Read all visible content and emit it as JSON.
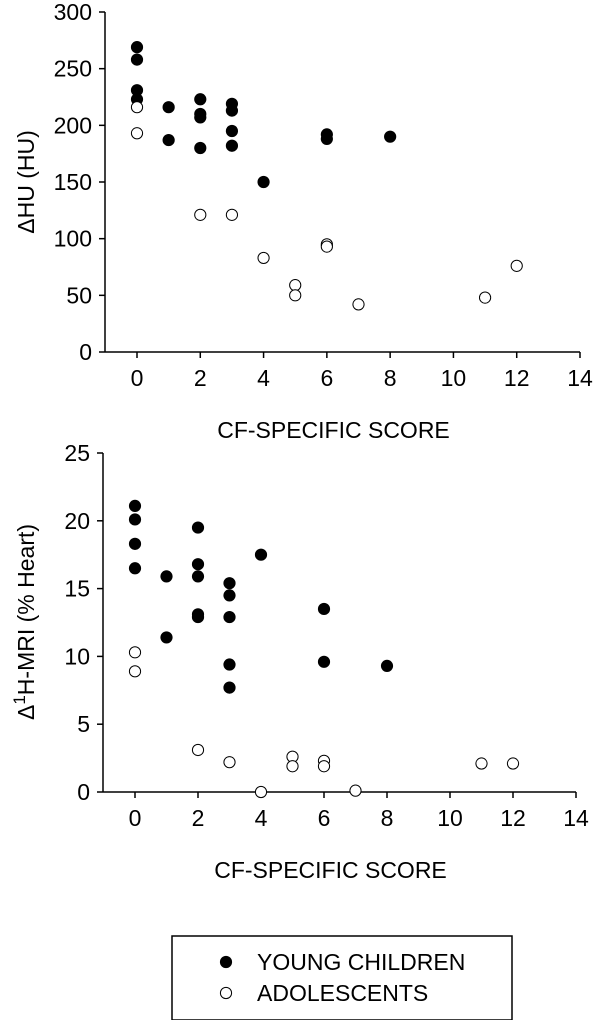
{
  "chart_data": [
    {
      "type": "scatter",
      "xlabel": "CF-SPECIFIC SCORE",
      "ylabel_symbol": "Δ",
      "ylabel_text": "HU (HU)",
      "xlim": [
        0,
        14
      ],
      "ylim": [
        0,
        300
      ],
      "xticks": [
        "0",
        "2",
        "4",
        "6",
        "8",
        "10",
        "12",
        "14"
      ],
      "yticks": [
        "0",
        "50",
        "100",
        "150",
        "200",
        "250",
        "300"
      ],
      "grid": false,
      "series": [
        {
          "name": "YOUNG CHILDREN",
          "marker": "filled",
          "points": [
            [
              0,
              269
            ],
            [
              0,
              258
            ],
            [
              0,
              231
            ],
            [
              0,
              223
            ],
            [
              1,
              216
            ],
            [
              1,
              187
            ],
            [
              2,
              223
            ],
            [
              2,
              210
            ],
            [
              2,
              207
            ],
            [
              2,
              180
            ],
            [
              3,
              219
            ],
            [
              3,
              213
            ],
            [
              3,
              195
            ],
            [
              3,
              182
            ],
            [
              4,
              150
            ],
            [
              6,
              192
            ],
            [
              6,
              188
            ],
            [
              8,
              190
            ]
          ]
        },
        {
          "name": "ADOLESCENTS",
          "marker": "open",
          "points": [
            [
              0,
              216
            ],
            [
              0,
              193
            ],
            [
              2,
              121
            ],
            [
              3,
              121
            ],
            [
              4,
              83
            ],
            [
              5,
              59
            ],
            [
              5,
              50
            ],
            [
              6,
              95
            ],
            [
              6,
              93
            ],
            [
              7,
              42
            ],
            [
              11,
              48
            ],
            [
              12,
              76
            ]
          ]
        }
      ]
    },
    {
      "type": "scatter",
      "xlabel": "CF-SPECIFIC SCORE",
      "ylabel_symbol": "Δ",
      "ylabel_superscript": "1",
      "ylabel_text": "H-MRI (% Heart)",
      "xlim": [
        0,
        14
      ],
      "ylim": [
        0,
        25
      ],
      "xticks": [
        "0",
        "2",
        "4",
        "6",
        "8",
        "10",
        "12",
        "14"
      ],
      "yticks": [
        "0",
        "5",
        "10",
        "15",
        "20",
        "25"
      ],
      "grid": false,
      "series": [
        {
          "name": "YOUNG CHILDREN",
          "marker": "filled",
          "points": [
            [
              0,
              21.1
            ],
            [
              0,
              20.1
            ],
            [
              0,
              18.3
            ],
            [
              0,
              16.5
            ],
            [
              1,
              15.9
            ],
            [
              1,
              11.4
            ],
            [
              2,
              19.5
            ],
            [
              2,
              16.8
            ],
            [
              2,
              15.9
            ],
            [
              2,
              13.1
            ],
            [
              2,
              12.9
            ],
            [
              3,
              15.4
            ],
            [
              3,
              14.5
            ],
            [
              3,
              12.9
            ],
            [
              3,
              9.4
            ],
            [
              3,
              7.7
            ],
            [
              4,
              17.5
            ],
            [
              6,
              13.5
            ],
            [
              6,
              9.6
            ],
            [
              8,
              9.3
            ]
          ]
        },
        {
          "name": "ADOLESCENTS",
          "marker": "open",
          "points": [
            [
              0,
              10.3
            ],
            [
              0,
              8.9
            ],
            [
              2,
              3.1
            ],
            [
              3,
              2.2
            ],
            [
              4,
              0.0
            ],
            [
              5,
              2.6
            ],
            [
              5,
              1.9
            ],
            [
              6,
              2.3
            ],
            [
              6,
              1.9
            ],
            [
              7,
              0.1
            ],
            [
              11,
              2.1
            ],
            [
              12,
              2.1
            ]
          ]
        }
      ]
    }
  ],
  "legend": {
    "position": "bottom-center",
    "items": [
      {
        "label": "YOUNG CHILDREN",
        "marker": "filled"
      },
      {
        "label": "ADOLESCENTS",
        "marker": "open"
      }
    ]
  }
}
